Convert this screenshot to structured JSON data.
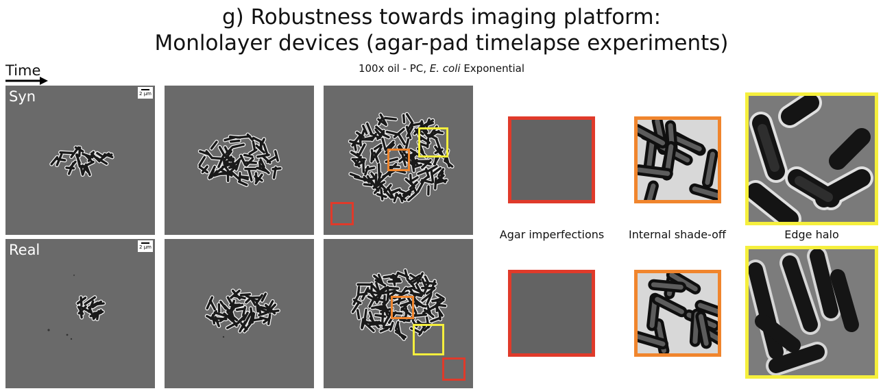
{
  "header": {
    "title_line1": "g) Robustness towards imaging platform:",
    "title_line2": "Monlolayer devices (agar-pad timelapse experiments)",
    "subtitle_prefix": "100x oil - PC, ",
    "subtitle_species": "E. coli",
    "subtitle_suffix": " Exponential",
    "time_label": "Time"
  },
  "rows": [
    {
      "label": "Syn",
      "scalebar": "2 μm"
    },
    {
      "label": "Real",
      "scalebar": "2 μm"
    }
  ],
  "colors": {
    "red": "#e03a2a",
    "orange": "#f0852d",
    "yellow": "#f5ef3d"
  },
  "captions": {
    "agar": "Agar imperfections",
    "internal": "Internal shade-off",
    "edge": "Edge halo"
  }
}
